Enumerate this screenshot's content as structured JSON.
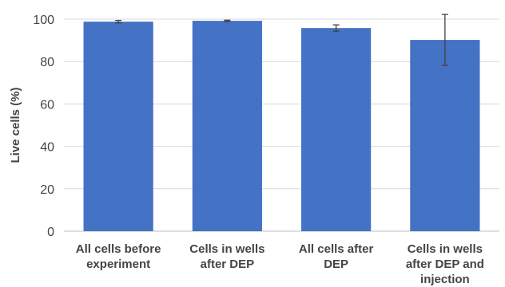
{
  "chart_data": {
    "type": "bar",
    "categories": [
      [
        "All cells before",
        "experiment"
      ],
      [
        "Cells in wells",
        "after DEP"
      ],
      [
        "All cells after",
        "DEP"
      ],
      [
        "Cells in wells",
        "after DEP and",
        "injection"
      ]
    ],
    "values": [
      98.8,
      99.2,
      95.8,
      90.2
    ],
    "error": [
      0.6,
      0.3,
      1.5,
      12.0
    ],
    "ylabel": "Live cells (%)",
    "xlabel": "",
    "title": "",
    "ylim": [
      0,
      100
    ],
    "yticks": [
      0,
      20,
      40,
      60,
      80,
      100
    ],
    "grid": true,
    "legend": "none",
    "colors": {
      "bar": "#4472C4",
      "grid": "#D9D9D9",
      "error": "#404040",
      "text": "#444444"
    }
  }
}
